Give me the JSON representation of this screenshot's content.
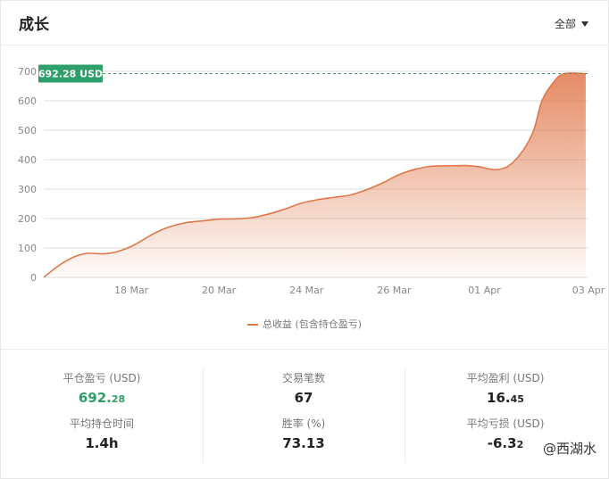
{
  "header": {
    "title": "成长",
    "filter_label": "全部"
  },
  "chart_data": {
    "type": "area",
    "x_ticks": [
      "18 Mar",
      "20 Mar",
      "24 Mar",
      "26 Mar",
      "01 Apr",
      "03 Apr"
    ],
    "y_ticks": [
      "0",
      "100",
      "200",
      "300",
      "400",
      "500",
      "600",
      "700"
    ],
    "ylim": [
      0,
      700
    ],
    "grid": true,
    "current_value_label": "692.28 USD",
    "current_value": 692.28,
    "series": [
      {
        "name": "总收益 (包含持仓盈亏)",
        "color": "#e0774a",
        "points": [
          [
            0,
            0
          ],
          [
            0.2,
            30
          ],
          [
            0.4,
            55
          ],
          [
            0.6,
            73
          ],
          [
            0.8,
            82
          ],
          [
            1.1,
            80
          ],
          [
            1.35,
            88
          ],
          [
            1.65,
            110
          ],
          [
            2.0,
            148
          ],
          [
            2.3,
            172
          ],
          [
            2.6,
            186
          ],
          [
            2.9,
            192
          ],
          [
            3.2,
            198
          ],
          [
            3.5,
            199
          ],
          [
            3.8,
            203
          ],
          [
            4.1,
            215
          ],
          [
            4.4,
            232
          ],
          [
            4.7,
            252
          ],
          [
            5.0,
            264
          ],
          [
            5.3,
            272
          ],
          [
            5.6,
            280
          ],
          [
            5.9,
            298
          ],
          [
            6.2,
            322
          ],
          [
            6.5,
            350
          ],
          [
            6.8,
            368
          ],
          [
            7.1,
            378
          ],
          [
            7.4,
            379
          ],
          [
            7.7,
            380
          ],
          [
            7.95,
            376
          ],
          [
            8.25,
            366
          ],
          [
            8.5,
            380
          ],
          [
            8.75,
            430
          ],
          [
            8.95,
            500
          ],
          [
            9.1,
            600
          ],
          [
            9.3,
            660
          ],
          [
            9.5,
            692
          ],
          [
            9.9,
            692.28
          ]
        ]
      }
    ],
    "x_tick_positions": [
      1.6,
      3.2,
      4.8,
      6.4,
      8.05,
      9.95
    ],
    "x_domain": [
      0,
      9.95
    ],
    "legend": "bottom"
  },
  "legend": {
    "label": "总收益 (包含持仓盈亏)"
  },
  "stats": {
    "closed_pnl": {
      "label": "平仓盈亏 (USD)",
      "int": "692.",
      "dec": "28"
    },
    "trades": {
      "label": "交易笔数",
      "value": "67"
    },
    "avg_profit": {
      "label": "平均盈利 (USD)",
      "int": "16.",
      "dec": "45"
    },
    "avg_hold": {
      "label": "平均持仓时间",
      "value": "1.4h"
    },
    "win_rate": {
      "label": "胜率 (%)",
      "value": "73.13"
    },
    "avg_loss": {
      "label": "平均亏损 (USD)",
      "int": "-6.3",
      "dec": "2"
    }
  },
  "watermark": "@西湖水",
  "colors": {
    "accent": "#e0774a",
    "green": "#2e9e6a"
  }
}
